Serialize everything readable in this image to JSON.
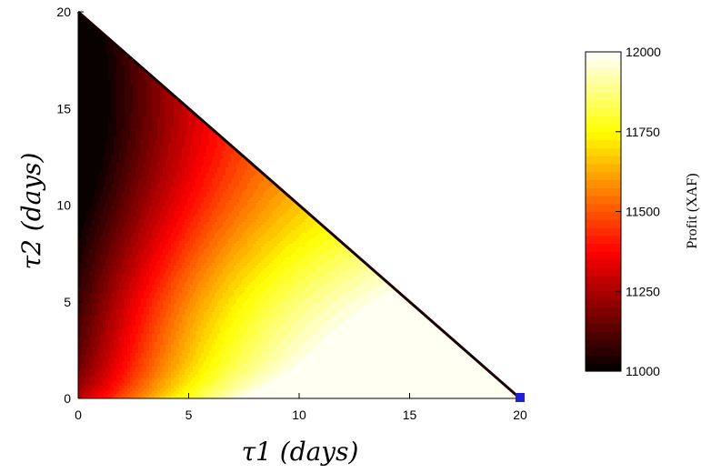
{
  "chart_data": {
    "type": "heatmap",
    "title": "",
    "xlabel": "τ1 (days)",
    "ylabel": "τ2 (days)",
    "xlim": [
      0,
      20
    ],
    "ylim": [
      0,
      20
    ],
    "x_ticks": [
      "0",
      "5",
      "10",
      "15",
      "20"
    ],
    "y_ticks": [
      "0",
      "5",
      "10",
      "15",
      "20"
    ],
    "domain": "τ1 + τ2 ≤ 20 (triangular region)",
    "colorbar": {
      "label": "Profit (XAF)",
      "range": [
        11000,
        12000
      ],
      "ticks": [
        "11000",
        "11250",
        "11500",
        "11750",
        "12000"
      ],
      "colormap": "hot",
      "levels": 40
    },
    "features": {
      "minimum_region": {
        "tau1": 0.5,
        "tau2": 15,
        "profit_approx": 11000
      },
      "optimum_marker": {
        "tau1": 20,
        "tau2": 0,
        "color": "#1f1fd6",
        "shape": "square"
      }
    },
    "colors": {
      "boundary": "#1a0000",
      "marker": "#1f1fd6"
    }
  }
}
